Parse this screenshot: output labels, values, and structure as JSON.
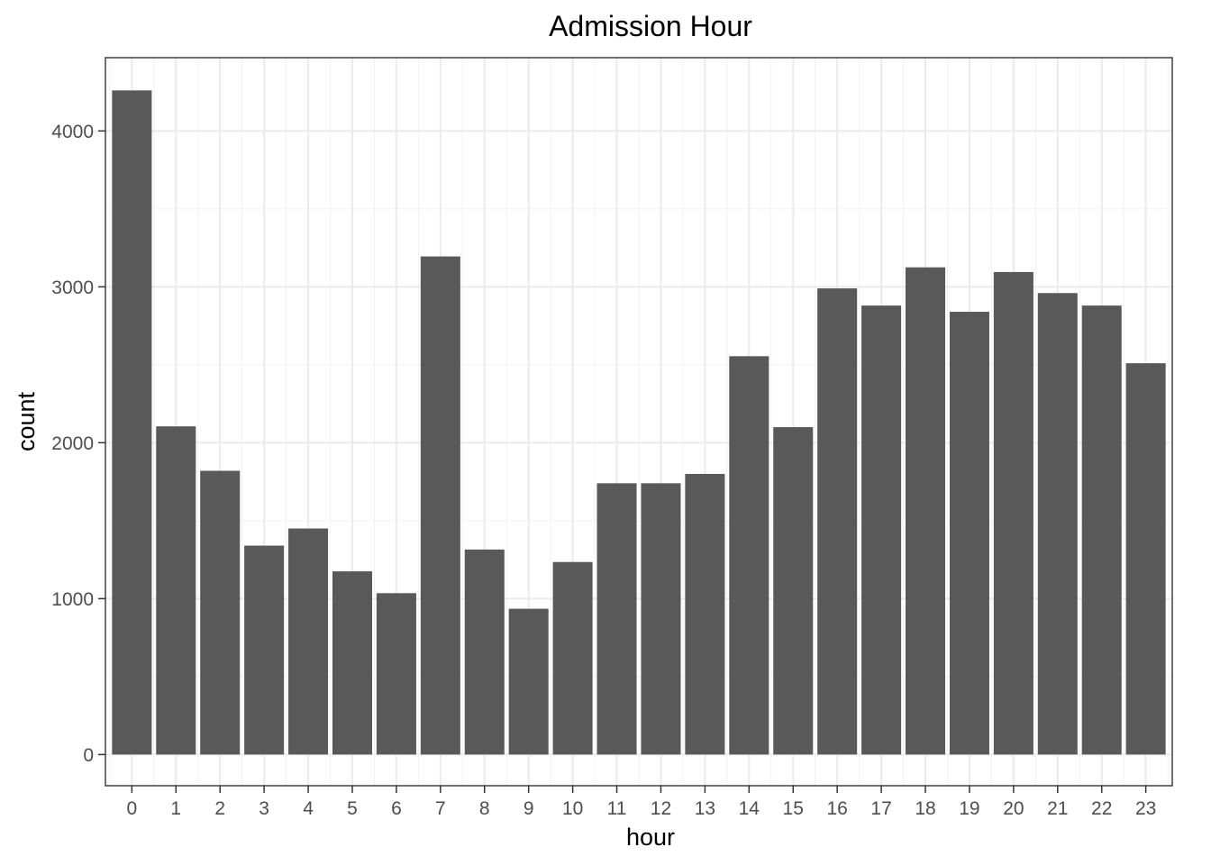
{
  "chart_data": {
    "type": "bar",
    "title": "Admission Hour",
    "xlabel": "hour",
    "ylabel": "count",
    "categories": [
      "0",
      "1",
      "2",
      "3",
      "4",
      "5",
      "6",
      "7",
      "8",
      "9",
      "10",
      "11",
      "12",
      "13",
      "14",
      "15",
      "16",
      "17",
      "18",
      "19",
      "20",
      "21",
      "22",
      "23"
    ],
    "values": [
      4260,
      2105,
      1820,
      1340,
      1450,
      1175,
      1035,
      3195,
      1315,
      935,
      1235,
      1740,
      1740,
      1800,
      2555,
      2100,
      2990,
      2880,
      3125,
      2840,
      3095,
      2960,
      2880,
      2510
    ],
    "yticks": [
      0,
      1000,
      2000,
      3000,
      4000
    ],
    "ytick_labels": [
      "0",
      "1000",
      "2000",
      "3000",
      "4000"
    ],
    "ylim": [
      -200,
      4470
    ],
    "grid": true,
    "bar_color": "#595959"
  }
}
